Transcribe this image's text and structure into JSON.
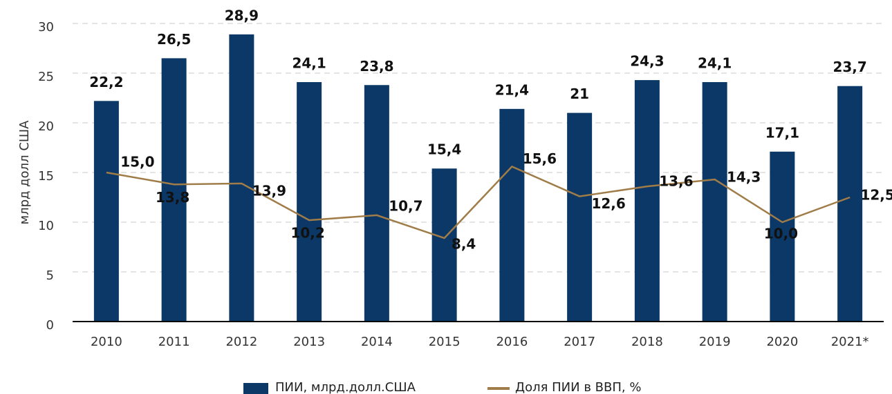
{
  "chart_data": {
    "type": "combo",
    "y_label": "млрд долл США",
    "categories": [
      "2010",
      "2011",
      "2012",
      "2013",
      "2014",
      "2015",
      "2016",
      "2017",
      "2018",
      "2019",
      "2020",
      "2021*"
    ],
    "series": [
      {
        "name": "ПИИ, млрд.долл.США",
        "type": "bar",
        "color": "#0b3866",
        "values": [
          22.2,
          26.5,
          28.9,
          24.1,
          23.8,
          15.4,
          21.4,
          21,
          24.3,
          24.1,
          17.1,
          23.7
        ],
        "value_labels": [
          "22,2",
          "26,5",
          "28,9",
          "24,1",
          "23,8",
          "15,4",
          "21,4",
          "21",
          "24,3",
          "24,1",
          "17,1",
          "23,7"
        ]
      },
      {
        "name": "Доля ПИИ в ВВП, %",
        "type": "line",
        "color": "#a07c48",
        "values": [
          15.0,
          13.8,
          13.9,
          10.2,
          10.7,
          8.4,
          15.6,
          12.6,
          13.6,
          14.3,
          10.0,
          12.5
        ],
        "value_labels": [
          "15,0",
          "13,8",
          "13,9",
          "10,2",
          "10,7",
          "8,4",
          "15,6",
          "12,6",
          "13,6",
          "14,3",
          "10,0",
          "12,5"
        ]
      }
    ],
    "ylim": [
      0,
      30
    ],
    "yticks": [
      0,
      5,
      10,
      15,
      20,
      25,
      30
    ],
    "grid": true,
    "legend": "bottom"
  }
}
